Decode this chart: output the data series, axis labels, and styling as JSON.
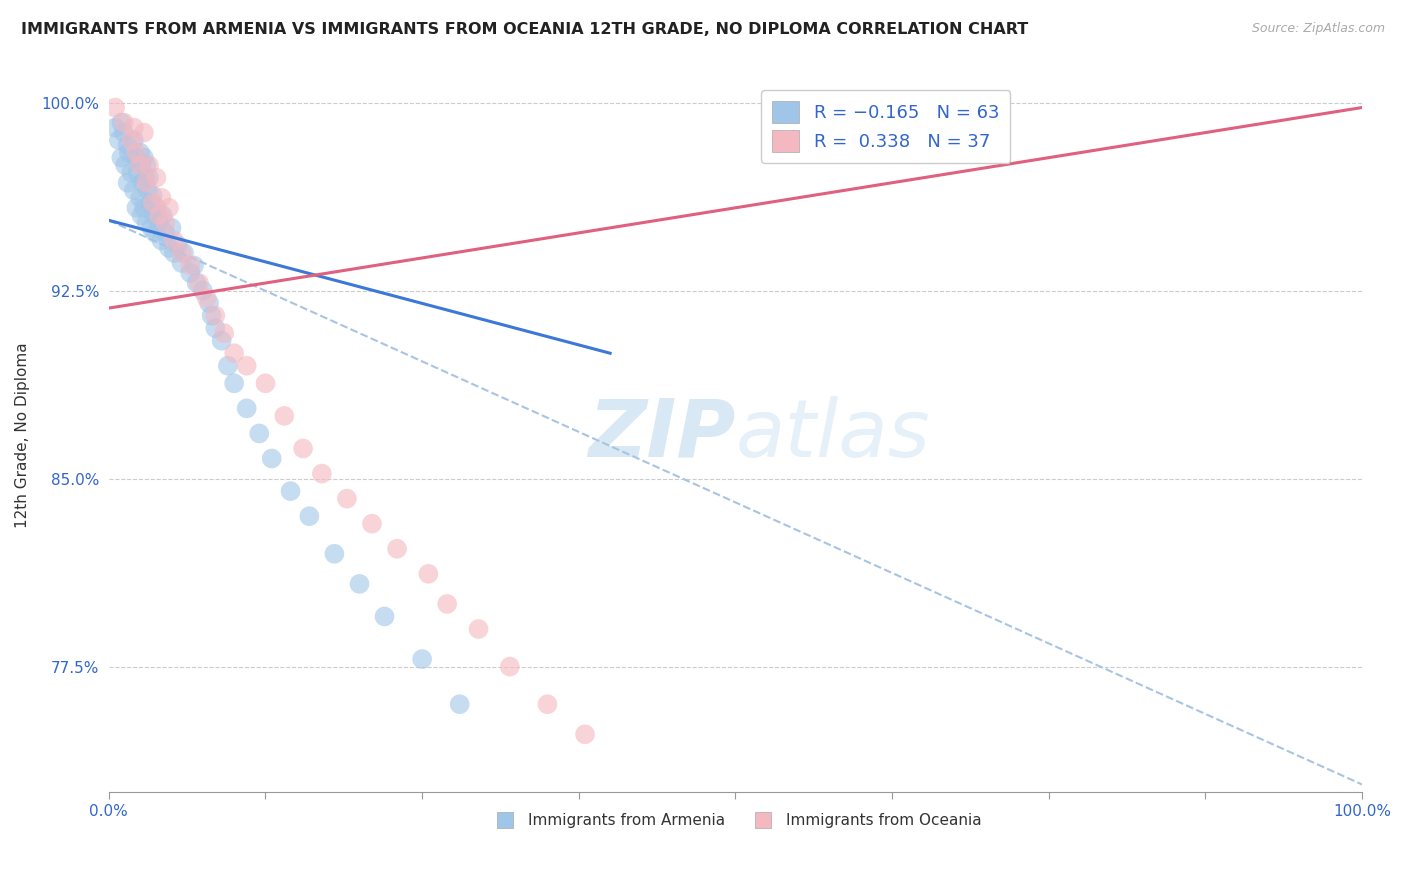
{
  "title": "IMMIGRANTS FROM ARMENIA VS IMMIGRANTS FROM OCEANIA 12TH GRADE, NO DIPLOMA CORRELATION CHART",
  "source_text": "Source: ZipAtlas.com",
  "xlabel": "",
  "ylabel": "12th Grade, No Diploma",
  "x_tick_labels": [
    "0.0%",
    "100.0%"
  ],
  "y_tick_labels": [
    "77.5%",
    "85.0%",
    "92.5%",
    "100.0%"
  ],
  "xlim": [
    0.0,
    1.0
  ],
  "ylim": [
    0.725,
    1.01
  ],
  "color_blue": "#9fc5e8",
  "color_pink": "#f4b8c1",
  "color_line_blue": "#3c78d8",
  "color_line_pink": "#e06080",
  "color_dashed": "#a8c4e0",
  "watermark_zip": "ZIP",
  "watermark_atlas": "atlas",
  "blue_scatter_x": [
    0.005,
    0.008,
    0.01,
    0.01,
    0.012,
    0.013,
    0.015,
    0.015,
    0.016,
    0.018,
    0.02,
    0.02,
    0.022,
    0.022,
    0.023,
    0.025,
    0.025,
    0.026,
    0.026,
    0.027,
    0.028,
    0.028,
    0.029,
    0.03,
    0.03,
    0.031,
    0.032,
    0.033,
    0.034,
    0.035,
    0.036,
    0.037,
    0.038,
    0.04,
    0.042,
    0.043,
    0.045,
    0.048,
    0.05,
    0.052,
    0.055,
    0.058,
    0.06,
    0.065,
    0.068,
    0.07,
    0.075,
    0.08,
    0.082,
    0.085,
    0.09,
    0.095,
    0.1,
    0.11,
    0.12,
    0.13,
    0.145,
    0.16,
    0.18,
    0.2,
    0.22,
    0.25,
    0.28
  ],
  "blue_scatter_y": [
    0.99,
    0.985,
    0.992,
    0.978,
    0.988,
    0.975,
    0.983,
    0.968,
    0.98,
    0.972,
    0.985,
    0.965,
    0.978,
    0.958,
    0.972,
    0.98,
    0.962,
    0.975,
    0.955,
    0.968,
    0.978,
    0.958,
    0.97,
    0.975,
    0.952,
    0.965,
    0.97,
    0.96,
    0.95,
    0.963,
    0.955,
    0.948,
    0.958,
    0.952,
    0.945,
    0.955,
    0.948,
    0.942,
    0.95,
    0.94,
    0.943,
    0.936,
    0.94,
    0.932,
    0.935,
    0.928,
    0.925,
    0.92,
    0.915,
    0.91,
    0.905,
    0.895,
    0.888,
    0.878,
    0.868,
    0.858,
    0.845,
    0.835,
    0.82,
    0.808,
    0.795,
    0.778,
    0.76
  ],
  "pink_scatter_x": [
    0.005,
    0.012,
    0.018,
    0.02,
    0.022,
    0.025,
    0.028,
    0.03,
    0.032,
    0.035,
    0.038,
    0.04,
    0.042,
    0.045,
    0.048,
    0.052,
    0.058,
    0.065,
    0.072,
    0.078,
    0.085,
    0.092,
    0.1,
    0.11,
    0.125,
    0.14,
    0.155,
    0.17,
    0.19,
    0.21,
    0.23,
    0.255,
    0.27,
    0.295,
    0.32,
    0.35,
    0.38
  ],
  "pink_scatter_y": [
    0.998,
    0.992,
    0.985,
    0.99,
    0.98,
    0.975,
    0.988,
    0.968,
    0.975,
    0.96,
    0.97,
    0.955,
    0.962,
    0.952,
    0.958,
    0.945,
    0.94,
    0.935,
    0.928,
    0.922,
    0.915,
    0.908,
    0.9,
    0.895,
    0.888,
    0.875,
    0.862,
    0.852,
    0.842,
    0.832,
    0.822,
    0.812,
    0.8,
    0.79,
    0.775,
    0.76,
    0.748
  ],
  "blue_line_x": [
    0.0,
    0.4
  ],
  "blue_line_y": [
    0.953,
    0.9
  ],
  "pink_line_x": [
    0.0,
    1.0
  ],
  "pink_line_y": [
    0.918,
    0.998
  ],
  "dashed_line_x": [
    0.0,
    1.0
  ],
  "dashed_line_y": [
    0.953,
    0.728
  ]
}
